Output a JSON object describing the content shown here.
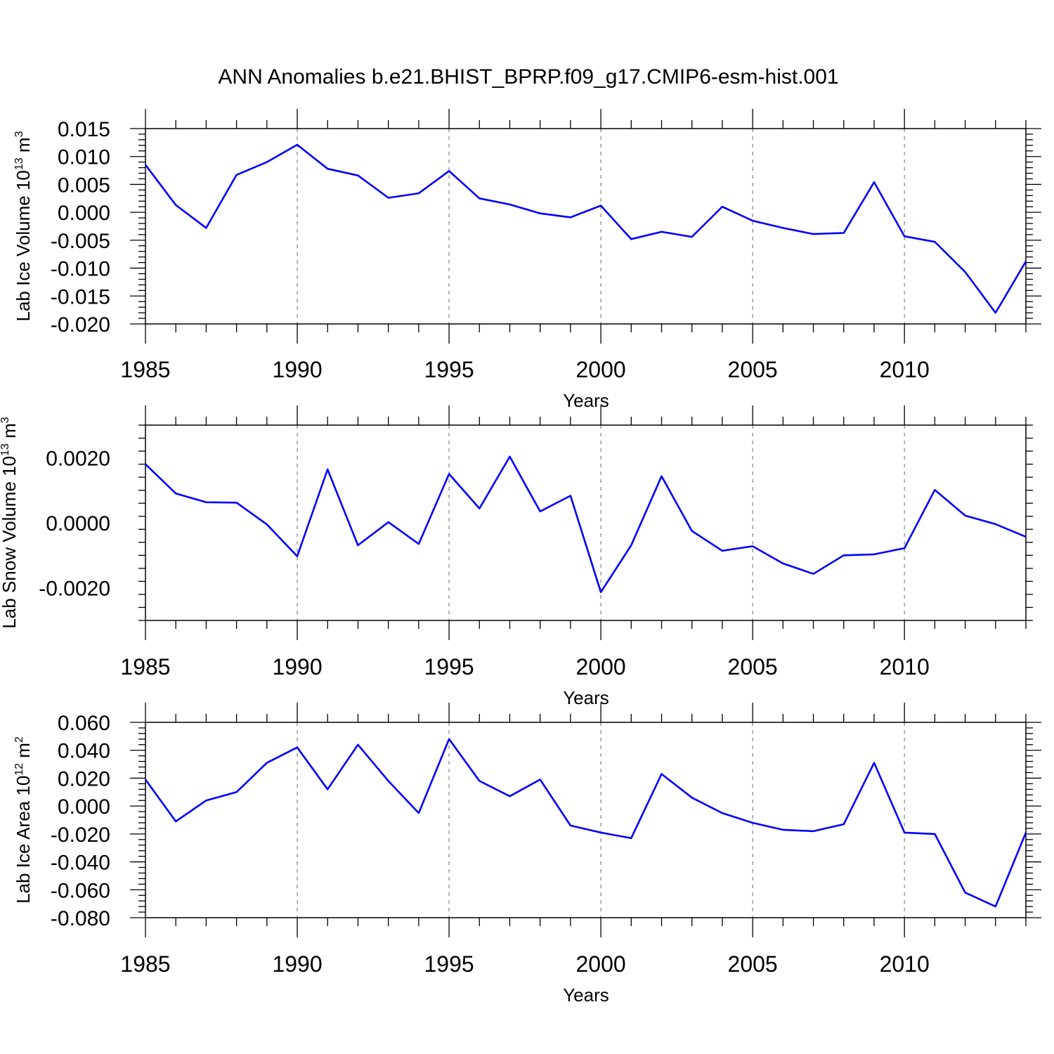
{
  "title": "ANN Anomalies b.e21.BHIST_BPRP.f09_g17.CMIP6-esm-hist.001",
  "colors": {
    "line": "#0000ff",
    "grid": "#9a9a9a",
    "axis": "#000000"
  },
  "chart_data": [
    {
      "type": "line",
      "title": "ANN Anomalies b.e21.BHIST_BPRP.f09_g17.CMIP6-esm-hist.001",
      "ylabel": {
        "prefix": "Lab Ice Volume 10",
        "sup1": "13",
        "mid": " m",
        "sup2": "3"
      },
      "xlabel": "Years",
      "xlim": [
        1985,
        2014
      ],
      "ylim": [
        -0.02,
        0.015
      ],
      "xticks": [
        1985,
        1990,
        1995,
        2000,
        2005,
        2010
      ],
      "xtick_labels": [
        "1985",
        "1990",
        "1995",
        "2000",
        "2005",
        "2010"
      ],
      "yticks": [
        -0.02,
        -0.015,
        -0.01,
        -0.005,
        0.0,
        0.005,
        0.01,
        0.015
      ],
      "ytick_labels": [
        "-0.020",
        "-0.015",
        "-0.010",
        "-0.005",
        "0.000",
        "0.005",
        "0.010",
        "0.015"
      ],
      "grid": "dashed vertical at major x ticks",
      "x": [
        1985,
        1986,
        1987,
        1988,
        1989,
        1990,
        1991,
        1992,
        1993,
        1994,
        1995,
        1996,
        1997,
        1998,
        1999,
        2000,
        2001,
        2002,
        2003,
        2004,
        2005,
        2006,
        2007,
        2008,
        2009,
        2010,
        2011,
        2012,
        2013,
        2014
      ],
      "values": [
        0.0085,
        0.0013,
        -0.0028,
        0.0067,
        0.009,
        0.0121,
        0.0078,
        0.0066,
        0.0026,
        0.0034,
        0.0074,
        0.0025,
        0.0014,
        -0.0002,
        -0.0009,
        0.0012,
        -0.0048,
        -0.0035,
        -0.0044,
        0.001,
        -0.0015,
        -0.0028,
        -0.0039,
        -0.0037,
        0.0054,
        -0.0043,
        -0.0053,
        -0.0107,
        -0.018,
        -0.0088
      ]
    },
    {
      "type": "line",
      "ylabel": {
        "prefix": "Lab Snow Volume 10",
        "sup1": "13",
        "mid": " m",
        "sup2": "3"
      },
      "xlabel": "Years",
      "xlim": [
        1985,
        2014
      ],
      "ylim": [
        -0.003,
        0.003
      ],
      "xticks": [
        1985,
        1990,
        1995,
        2000,
        2005,
        2010
      ],
      "xtick_labels": [
        "1985",
        "1990",
        "1995",
        "2000",
        "2005",
        "2010"
      ],
      "yticks": [
        -0.002,
        0.0,
        0.002
      ],
      "ytick_labels": [
        "-0.0020",
        "0.0000",
        "0.0020"
      ],
      "grid": "dashed vertical at major x ticks",
      "x": [
        1985,
        1986,
        1987,
        1988,
        1989,
        1990,
        1991,
        1992,
        1993,
        1994,
        1995,
        1996,
        1997,
        1998,
        1999,
        2000,
        2001,
        2002,
        2003,
        2004,
        2005,
        2006,
        2007,
        2008,
        2009,
        2010,
        2011,
        2012,
        2013,
        2014
      ],
      "values": [
        0.0018,
        0.0009,
        0.00063,
        0.00062,
        -5e-05,
        -0.00103,
        0.00164,
        -0.00069,
        2e-05,
        -0.00065,
        0.0015,
        0.00044,
        0.00203,
        0.00035,
        0.00083,
        -0.00213,
        -0.00069,
        0.00143,
        -0.00025,
        -0.00086,
        -0.00072,
        -0.00125,
        -0.00157,
        -0.001,
        -0.00097,
        -0.00078,
        0.00101,
        0.00022,
        -4e-05,
        -0.00043
      ]
    },
    {
      "type": "line",
      "ylabel": {
        "prefix": "Lab Ice Area 10",
        "sup1": "12",
        "mid": " m",
        "sup2": "2"
      },
      "xlabel": "Years",
      "xlim": [
        1985,
        2014
      ],
      "ylim": [
        -0.08,
        0.06
      ],
      "xticks": [
        1985,
        1990,
        1995,
        2000,
        2005,
        2010
      ],
      "xtick_labels": [
        "1985",
        "1990",
        "1995",
        "2000",
        "2005",
        "2010"
      ],
      "yticks": [
        -0.08,
        -0.06,
        -0.04,
        -0.02,
        0.0,
        0.02,
        0.04,
        0.06
      ],
      "ytick_labels": [
        "-0.080",
        "-0.060",
        "-0.040",
        "-0.020",
        "0.000",
        "0.020",
        "0.040",
        "0.060"
      ],
      "grid": "dashed vertical at major x ticks",
      "x": [
        1985,
        1986,
        1987,
        1988,
        1989,
        1990,
        1991,
        1992,
        1993,
        1994,
        1995,
        1996,
        1997,
        1998,
        1999,
        2000,
        2001,
        2002,
        2003,
        2004,
        2005,
        2006,
        2007,
        2008,
        2009,
        2010,
        2011,
        2012,
        2013,
        2014
      ],
      "values": [
        0.019,
        -0.011,
        0.004,
        0.01,
        0.031,
        0.042,
        0.012,
        0.044,
        0.018,
        -0.005,
        0.048,
        0.018,
        0.007,
        0.019,
        -0.014,
        -0.019,
        -0.023,
        0.023,
        0.006,
        -0.005,
        -0.012,
        -0.017,
        -0.018,
        -0.013,
        0.031,
        -0.019,
        -0.02,
        -0.062,
        -0.072,
        -0.019
      ]
    }
  ]
}
